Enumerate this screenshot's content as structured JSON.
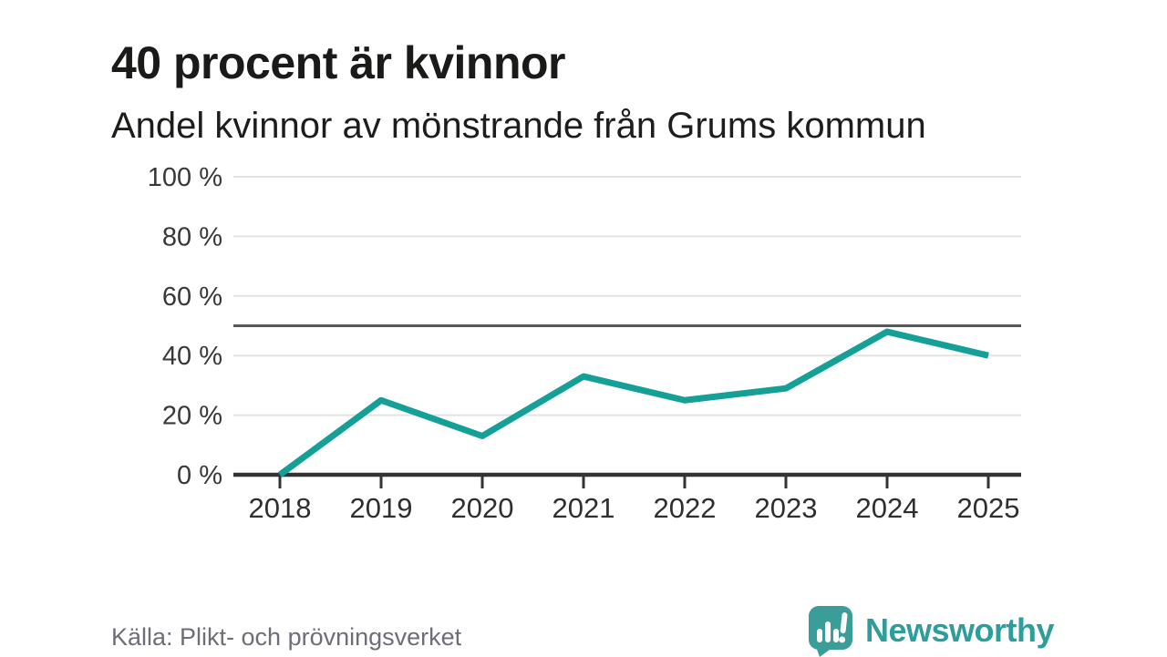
{
  "header": {
    "title": "40 procent är kvinnor",
    "subtitle": "Andel kvinnor av mönstrande från Grums kommun"
  },
  "chart_data": {
    "type": "line",
    "title": "40 procent är kvinnor",
    "subtitle": "Andel kvinnor av mönstrande från Grums kommun",
    "x": [
      "2018",
      "2019",
      "2020",
      "2021",
      "2022",
      "2023",
      "2024",
      "2025"
    ],
    "series": [
      {
        "name": "Andel kvinnor av mönstrande (%)",
        "values": [
          0,
          25,
          13,
          33,
          25,
          29,
          48,
          40
        ]
      }
    ],
    "ylim": [
      0,
      100
    ],
    "yticks": [
      0,
      20,
      40,
      60,
      80,
      100
    ],
    "ytick_labels": [
      "0 %",
      "20 %",
      "40 %",
      "60 %",
      "80 %",
      "100 %"
    ],
    "reference_line": 50,
    "grid": "horizontal",
    "legend": "none",
    "colors": {
      "line": "#14a096",
      "reference": "#58585a",
      "grid": "#e3e3e3",
      "axis": "#333333"
    }
  },
  "footer": {
    "source": "Källa: Plikt- och prövningsverket",
    "brand_name": "Newsworthy",
    "brand_color": "#2f9d99",
    "icon_color": "#3a9d98"
  }
}
